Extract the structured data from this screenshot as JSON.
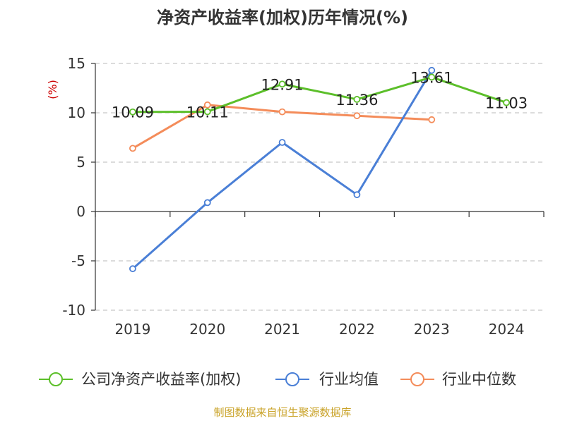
{
  "chart_data": {
    "type": "line",
    "title": "净资产收益率(加权)历年情况(%)",
    "y_unit": "(%)",
    "categories": [
      "2019",
      "2020",
      "2021",
      "2022",
      "2023",
      "2024"
    ],
    "ylim": [
      -10,
      15
    ],
    "yticks": [
      "15",
      "10",
      "5",
      "0",
      "-5",
      "-10"
    ],
    "grid": true,
    "legend_position": "bottom",
    "series": [
      {
        "name": "公司净资产收益率(加权)",
        "color": "#5cbf2a",
        "values": [
          10.09,
          10.11,
          12.91,
          11.36,
          13.61,
          11.03
        ],
        "labels": [
          "10.09",
          "10.11",
          "12.91",
          "11.36",
          "13.61",
          "11.03"
        ]
      },
      {
        "name": "行业均值",
        "color": "#4a7fd6",
        "values": [
          -5.8,
          0.9,
          7.0,
          1.7,
          14.3,
          null
        ]
      },
      {
        "name": "行业中位数",
        "color": "#f48c5a",
        "values": [
          6.4,
          10.8,
          10.1,
          9.7,
          9.3,
          null
        ]
      }
    ],
    "source": "制图数据来自恒生聚源数据库"
  }
}
